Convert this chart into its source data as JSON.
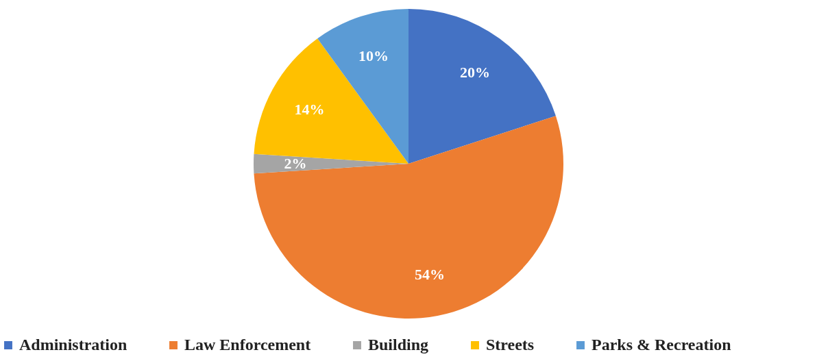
{
  "chart_data": {
    "type": "pie",
    "categories": [
      "Administration",
      "Law Enforcement",
      "Building",
      "Streets",
      "Parks & Recreation"
    ],
    "values": [
      20,
      54,
      2,
      14,
      10
    ],
    "colors": [
      "#4472c4",
      "#ed7d31",
      "#a5a5a5",
      "#ffc000",
      "#5b9bd5"
    ],
    "value_labels": [
      "20%",
      "54%",
      "2%",
      "14%",
      "10%"
    ],
    "legend": "bottom"
  }
}
